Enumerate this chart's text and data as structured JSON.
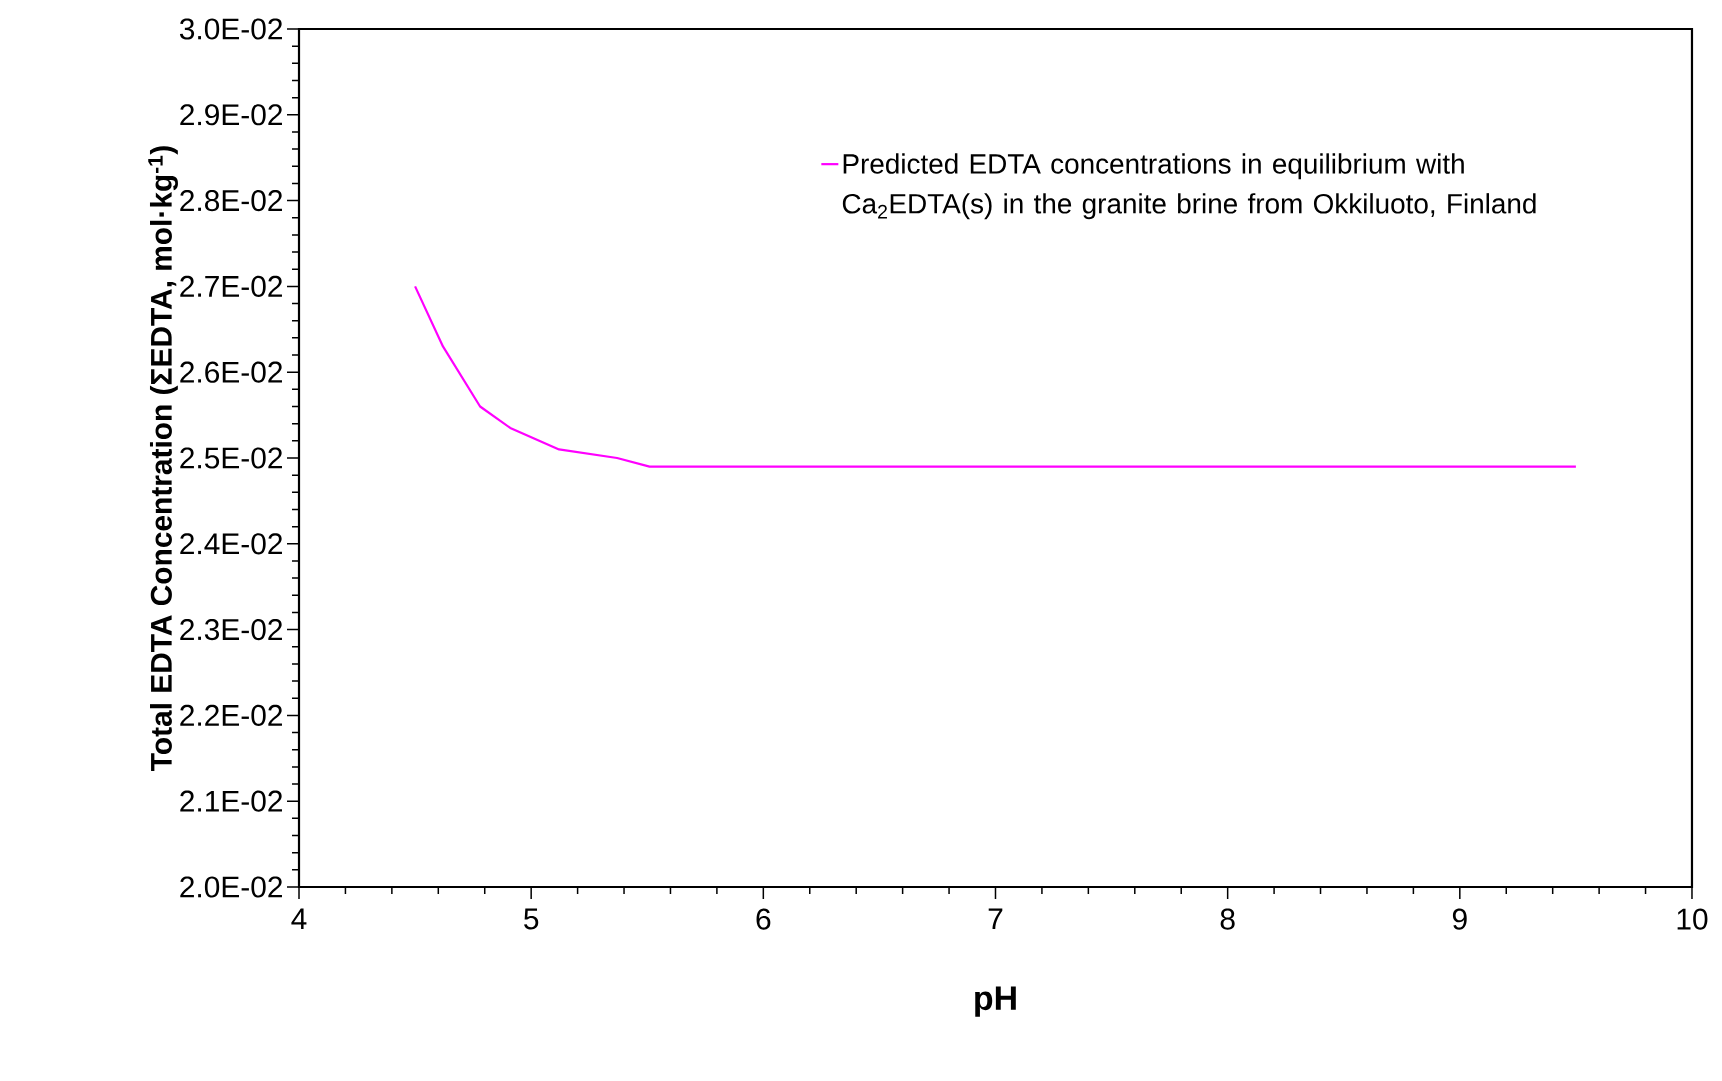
{
  "chart_data": {
    "type": "line",
    "xlabel": "pH",
    "ylabel": "Total EDTA Concentration (ΣEDTA, mol·kg$^{-1}$)",
    "xlim": [
      4,
      10
    ],
    "ylim": [
      0.02,
      0.03
    ],
    "xticks": [
      4,
      5,
      6,
      7,
      8,
      9,
      10
    ],
    "yticks": [
      {
        "value": 0.02,
        "label": "2.0E-02"
      },
      {
        "value": 0.021,
        "label": "2.1E-02"
      },
      {
        "value": 0.022,
        "label": "2.2E-02"
      },
      {
        "value": 0.023,
        "label": "2.3E-02"
      },
      {
        "value": 0.024,
        "label": "2.4E-02"
      },
      {
        "value": 0.025,
        "label": "2.5E-02"
      },
      {
        "value": 0.026,
        "label": "2.6E-02"
      },
      {
        "value": 0.027,
        "label": "2.7E-02"
      },
      {
        "value": 0.028,
        "label": "2.8E-02"
      },
      {
        "value": 0.029,
        "label": "2.9E-02"
      },
      {
        "value": 0.03,
        "label": "3.0E-02"
      }
    ],
    "legend": "top right",
    "grid": false,
    "series": [
      {
        "name": "Predicted EDTA concentrations in equilibrium with Ca$_{2}$EDTA(s) in the granite brine from Okkiluoto, Finland",
        "color": "#ff00ff",
        "x": [
          4.5,
          4.62,
          4.78,
          4.91,
          5.12,
          5.37,
          5.51,
          6.02,
          7.13,
          8.62,
          9.5
        ],
        "values": [
          0.027,
          0.0263,
          0.0256,
          0.02535,
          0.0251,
          0.025,
          0.0249,
          0.0249,
          0.0249,
          0.0249,
          0.0249
        ]
      }
    ]
  }
}
